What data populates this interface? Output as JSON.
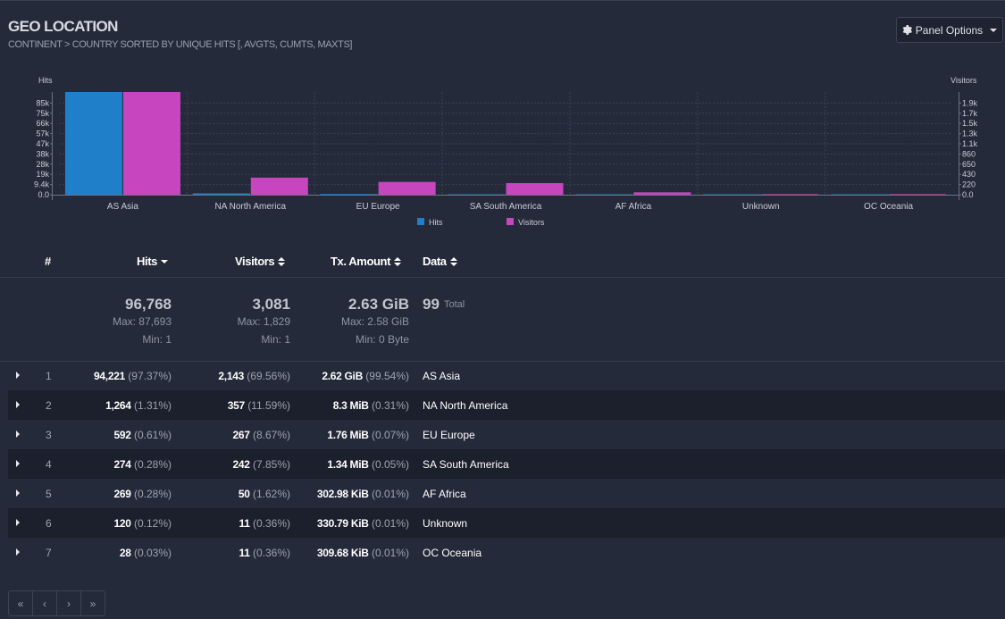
{
  "header": {
    "title": "GEO LOCATION",
    "subtitle": "CONTINENT > COUNTRY SORTED BY UNIQUE HITS [, AVGTS, CUMTS, MAXTS]",
    "panel_options_label": "Panel Options",
    "panel_options_icon": "gear-icon"
  },
  "chart_data": {
    "type": "bar",
    "categories": [
      "AS Asia",
      "NA North America",
      "EU Europe",
      "SA South America",
      "AF Africa",
      "Unknown",
      "OC Oceania"
    ],
    "series": [
      {
        "name": "Hits",
        "axis": "left",
        "color": "#1f7fc9",
        "values": [
          94221,
          1264,
          592,
          274,
          269,
          120,
          28
        ]
      },
      {
        "name": "Visitors",
        "axis": "right",
        "color": "#c845c0",
        "values": [
          2143,
          357,
          267,
          242,
          50,
          11,
          11
        ]
      }
    ],
    "left_axis": {
      "label": "Hits",
      "ylim": [
        0,
        94221
      ],
      "ticks": [
        "0.0",
        "9.4k",
        "19k",
        "28k",
        "38k",
        "47k",
        "57k",
        "66k",
        "75k",
        "85k"
      ]
    },
    "right_axis": {
      "label": "Visitors",
      "ylim": [
        0,
        2143
      ],
      "ticks": [
        "0.0",
        "220",
        "430",
        "650",
        "860",
        "1.1k",
        "1.3k",
        "1.5k",
        "1.7k",
        "1.9k"
      ]
    },
    "legend": [
      "Hits",
      "Visitors"
    ],
    "legend_position": "bottom-center"
  },
  "table": {
    "headers": {
      "num": "#",
      "hits": "Hits",
      "visitors": "Visitors",
      "tx": "Tx. Amount",
      "data": "Data"
    },
    "summary": {
      "hits": {
        "total": "96,768",
        "max": "Max: 87,693",
        "min": "Min: 1"
      },
      "visitors": {
        "total": "3,081",
        "max": "Max: 1,829",
        "min": "Min: 1"
      },
      "tx": {
        "total": "2.63 GiB",
        "max": "Max: 2.58 GiB",
        "min": "Min: 0 Byte"
      },
      "data": {
        "total": "99",
        "label": "Total"
      }
    },
    "rows": [
      {
        "n": "1",
        "hits": "94,221",
        "hits_pct": "(97.37%)",
        "visitors": "2,143",
        "visitors_pct": "(69.56%)",
        "tx": "2.62 GiB",
        "tx_pct": "(99.54%)",
        "data": "AS Asia"
      },
      {
        "n": "2",
        "hits": "1,264",
        "hits_pct": "(1.31%)",
        "visitors": "357",
        "visitors_pct": "(11.59%)",
        "tx": "8.3 MiB",
        "tx_pct": "(0.31%)",
        "data": "NA North America"
      },
      {
        "n": "3",
        "hits": "592",
        "hits_pct": "(0.61%)",
        "visitors": "267",
        "visitors_pct": "(8.67%)",
        "tx": "1.76 MiB",
        "tx_pct": "(0.07%)",
        "data": "EU Europe"
      },
      {
        "n": "4",
        "hits": "274",
        "hits_pct": "(0.28%)",
        "visitors": "242",
        "visitors_pct": "(7.85%)",
        "tx": "1.34 MiB",
        "tx_pct": "(0.05%)",
        "data": "SA South America"
      },
      {
        "n": "5",
        "hits": "269",
        "hits_pct": "(0.28%)",
        "visitors": "50",
        "visitors_pct": "(1.62%)",
        "tx": "302.98 KiB",
        "tx_pct": "(0.01%)",
        "data": "AF Africa"
      },
      {
        "n": "6",
        "hits": "120",
        "hits_pct": "(0.12%)",
        "visitors": "11",
        "visitors_pct": "(0.36%)",
        "tx": "330.79 KiB",
        "tx_pct": "(0.01%)",
        "data": "Unknown"
      },
      {
        "n": "7",
        "hits": "28",
        "hits_pct": "(0.03%)",
        "visitors": "11",
        "visitors_pct": "(0.36%)",
        "tx": "309.68 KiB",
        "tx_pct": "(0.01%)",
        "data": "OC Oceania"
      }
    ]
  },
  "pagination": {
    "first": "«",
    "prev": "‹",
    "next": "›",
    "last": "»"
  }
}
